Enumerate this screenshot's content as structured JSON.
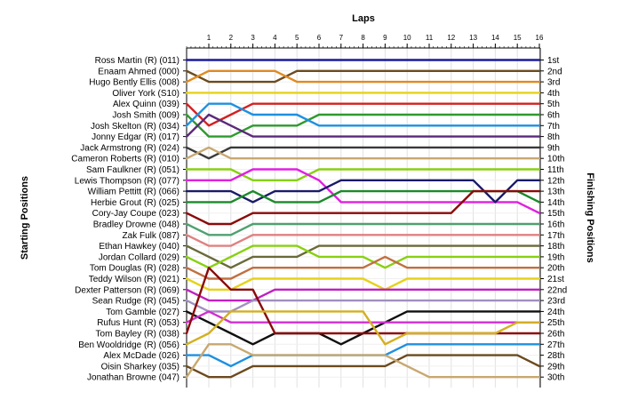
{
  "chart_data": {
    "type": "line",
    "title": "",
    "xlabel": "Laps",
    "ylabel_left": "Starting Positions",
    "ylabel_right": "Finishing Positions",
    "laps": [
      1,
      2,
      3,
      4,
      5,
      6,
      7,
      8,
      9,
      10,
      11,
      12,
      13,
      14,
      15,
      16
    ],
    "grid": true,
    "drivers": [
      "Ross Martin  (R) (011)",
      "Enaam Ahmed (000)",
      "Hugo Bently Ellis (008)",
      "Oliver York (S10)",
      "Alex Quinn (039)",
      "Josh Smith (009)",
      "Josh Skelton  (R) (034)",
      "Jonny Edgar (R) (017)",
      "Jack Armstrong (R) (024)",
      "Cameron Roberts  (R) (010)",
      "Sam Faulkner  (R) (051)",
      "Lewis Thompson (R) (077)",
      "William Pettitt (R) (066)",
      "Herbie Grout  (R) (025)",
      "Cory-Jay Coupe (023)",
      "Bradley Drowne (048)",
      "Zak Fulk (087)",
      "Ethan Hawkey (040)",
      "Jordan Collard (029)",
      "Tom Douglas  (R) (028)",
      "Teddy Wilson  (R) (021)",
      "Dexter Patterson (R) (069)",
      "Sean Rudge (R) (045)",
      "Tom Gamble (027)",
      "Rufus Hunt (R) (053)",
      "Tom Bayley (R) (038)",
      "Ben Wooldridge (R) (056)",
      "Alex McDade (026)",
      "Oisin Sharkey (035)",
      "Jonathan Browne (047)"
    ],
    "finishing_positions": [
      "1st",
      "2nd",
      "3rd",
      "4th",
      "5th",
      "6th",
      "7th",
      "8th",
      "9th",
      "10th",
      "11th",
      "12th",
      "13th",
      "14th",
      "15th",
      "16th",
      "17th",
      "18th",
      "19th",
      "20th",
      "21st",
      "22nd",
      "23rd",
      "24th",
      "25th",
      "26th",
      "27th",
      "28th",
      "29th",
      "30th"
    ],
    "series": [
      {
        "start": 1,
        "color": "#1a1a99",
        "positions": [
          1,
          1,
          1,
          1,
          1,
          1,
          1,
          1,
          1,
          1,
          1,
          1,
          1,
          1,
          1,
          1
        ]
      },
      {
        "start": 2,
        "color": "#6b4a1e",
        "positions": [
          3,
          3,
          3,
          3,
          2,
          2,
          2,
          2,
          2,
          2,
          2,
          2,
          2,
          2,
          2,
          2
        ]
      },
      {
        "start": 3,
        "color": "#e08a20",
        "positions": [
          2,
          2,
          2,
          2,
          3,
          3,
          3,
          3,
          3,
          3,
          3,
          3,
          3,
          3,
          3,
          3
        ]
      },
      {
        "start": 4,
        "color": "#e6d21a",
        "positions": [
          4,
          4,
          4,
          4,
          4,
          4,
          4,
          4,
          4,
          4,
          4,
          4,
          4,
          4,
          4,
          4
        ]
      },
      {
        "start": 5,
        "color": "#d42020",
        "positions": [
          7,
          6,
          5,
          5,
          5,
          5,
          5,
          5,
          5,
          5,
          5,
          5,
          5,
          5,
          5,
          5
        ]
      },
      {
        "start": 6,
        "color": "#2e9a2e",
        "positions": [
          8,
          8,
          7,
          7,
          7,
          6,
          6,
          6,
          6,
          6,
          6,
          6,
          6,
          6,
          6,
          6
        ]
      },
      {
        "start": 7,
        "color": "#1e90e0",
        "positions": [
          5,
          5,
          6,
          6,
          6,
          7,
          7,
          7,
          7,
          7,
          7,
          7,
          7,
          7,
          7,
          7
        ]
      },
      {
        "start": 8,
        "color": "#5a2a7a",
        "positions": [
          6,
          7,
          8,
          8,
          8,
          8,
          8,
          8,
          8,
          8,
          8,
          8,
          8,
          8,
          8,
          8
        ]
      },
      {
        "start": 9,
        "color": "#3a3a3a",
        "positions": [
          10,
          9,
          9,
          9,
          9,
          9,
          9,
          9,
          9,
          9,
          9,
          9,
          9,
          9,
          9,
          9
        ]
      },
      {
        "start": 10,
        "color": "#c8a870",
        "positions": [
          9,
          10,
          10,
          10,
          10,
          10,
          10,
          10,
          10,
          10,
          10,
          10,
          10,
          10,
          10,
          10
        ]
      },
      {
        "start": 11,
        "color": "#88d010",
        "positions": [
          11,
          11,
          12,
          12,
          12,
          11,
          11,
          11,
          11,
          11,
          11,
          11,
          11,
          11,
          11,
          11
        ]
      },
      {
        "start": 12,
        "color": "#e020e0",
        "positions": [
          12,
          12,
          11,
          11,
          11,
          12,
          14,
          14,
          14,
          14,
          14,
          14,
          14,
          14,
          14,
          15
        ]
      },
      {
        "start": 13,
        "color": "#1a1a6a",
        "positions": [
          13,
          13,
          14,
          13,
          13,
          13,
          12,
          12,
          12,
          12,
          12,
          12,
          12,
          14,
          12,
          12
        ]
      },
      {
        "start": 14,
        "color": "#1a8a2a",
        "positions": [
          14,
          14,
          13,
          14,
          14,
          14,
          13,
          13,
          13,
          13,
          13,
          13,
          13,
          13,
          13,
          14
        ]
      },
      {
        "start": 15,
        "color": "#8a0a0a",
        "positions": [
          16,
          16,
          15,
          15,
          15,
          15,
          15,
          15,
          15,
          15,
          15,
          15,
          13,
          13,
          13,
          13
        ]
      },
      {
        "start": 16,
        "color": "#50a070",
        "positions": [
          17,
          17,
          16,
          16,
          16,
          16,
          16,
          16,
          16,
          16,
          16,
          16,
          16,
          16,
          16,
          16
        ]
      },
      {
        "start": 17,
        "color": "#e08080",
        "positions": [
          18,
          18,
          17,
          17,
          17,
          17,
          17,
          17,
          17,
          17,
          17,
          17,
          17,
          17,
          17,
          17
        ]
      },
      {
        "start": 18,
        "color": "#6a6a3a",
        "positions": [
          19,
          20,
          19,
          19,
          19,
          18,
          18,
          18,
          18,
          18,
          18,
          18,
          18,
          18,
          18,
          18
        ]
      },
      {
        "start": 19,
        "color": "#88d010",
        "positions": [
          20,
          19,
          18,
          18,
          18,
          19,
          19,
          19,
          20,
          19,
          19,
          19,
          19,
          19,
          19,
          19
        ]
      },
      {
        "start": 20,
        "color": "#c07040",
        "positions": [
          21,
          21,
          20,
          20,
          20,
          20,
          20,
          20,
          19,
          20,
          20,
          20,
          20,
          20,
          20,
          20
        ]
      },
      {
        "start": 21,
        "color": "#e6d21a",
        "positions": [
          22,
          22,
          21,
          21,
          21,
          21,
          21,
          21,
          22,
          21,
          21,
          21,
          21,
          21,
          21,
          21
        ]
      },
      {
        "start": 22,
        "color": "#c020c0",
        "positions": [
          23,
          23,
          23,
          22,
          22,
          22,
          22,
          22,
          22,
          22,
          22,
          22,
          22,
          22,
          22,
          22
        ]
      },
      {
        "start": 23,
        "color": "#a090c0",
        "positions": [
          24,
          24,
          23,
          23,
          23,
          23,
          23,
          23,
          23,
          23,
          23,
          23,
          23,
          23,
          23,
          23
        ]
      },
      {
        "start": 24,
        "color": "#101010",
        "positions": [
          25,
          26,
          27,
          26,
          26,
          26,
          27,
          26,
          25,
          24,
          24,
          24,
          24,
          24,
          24,
          24
        ]
      },
      {
        "start": 25,
        "color": "#d030d0",
        "positions": [
          24,
          25,
          25,
          25,
          25,
          25,
          25,
          25,
          25,
          25,
          25,
          25,
          25,
          25,
          25,
          25
        ]
      },
      {
        "start": 26,
        "color": "#8a0a0a",
        "positions": [
          20,
          22,
          22,
          26,
          26,
          26,
          26,
          26,
          26,
          26,
          26,
          26,
          26,
          26,
          26,
          26
        ]
      },
      {
        "start": 27,
        "color": "#d4b020",
        "positions": [
          26,
          24,
          24,
          24,
          24,
          24,
          24,
          24,
          27,
          26,
          26,
          26,
          26,
          26,
          25,
          25
        ]
      },
      {
        "start": 28,
        "color": "#1e90e0",
        "positions": [
          28,
          29,
          28,
          28,
          28,
          28,
          28,
          28,
          28,
          27,
          27,
          27,
          27,
          27,
          27,
          27
        ]
      },
      {
        "start": 29,
        "color": "#6b4a1e",
        "positions": [
          30,
          30,
          29,
          29,
          29,
          29,
          29,
          29,
          29,
          28,
          28,
          28,
          28,
          28,
          28,
          29
        ]
      },
      {
        "start": 30,
        "color": "#c8a870",
        "positions": [
          27,
          27,
          28,
          28,
          28,
          28,
          28,
          28,
          28,
          29,
          30,
          30,
          30,
          30,
          30,
          30
        ]
      }
    ]
  }
}
